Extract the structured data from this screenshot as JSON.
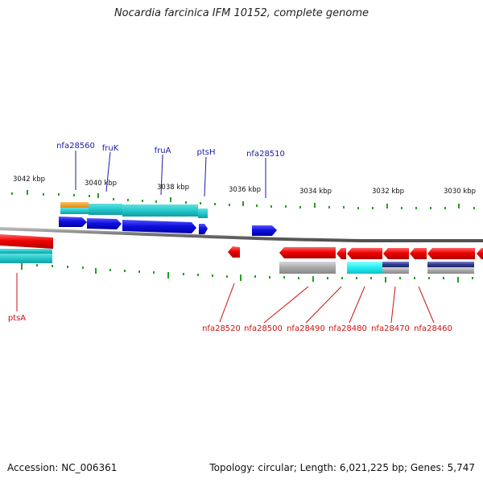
{
  "title": "Nocardia farcinica IFM 10152, complete genome",
  "footer": {
    "accession": "Accession: NC_006361",
    "summary": "Topology: circular; Length: 6,021,225 bp; Genes: 5,747"
  },
  "axis": {
    "unit": "kbp",
    "ticks": [
      "3042 kbp",
      "3040 kbp",
      "3038 kbp",
      "3036 kbp",
      "3034 kbp",
      "3032 kbp",
      "3030 kbp"
    ]
  },
  "colors": {
    "forward_gene": "#ee0000",
    "cds_blue": "#1010e0",
    "cyan": "#22c8cc",
    "orange": "#f0a020",
    "gray": "#a0a0a0",
    "navy": "#303890",
    "tick": "#22a022",
    "label_blue": "#1a1aa8",
    "label_red": "#cc1111",
    "backbone": "#808080"
  },
  "labels": {
    "top": [
      "nfa28560",
      "fruK",
      "fruA",
      "ptsH",
      "nfa28510"
    ],
    "bottom": [
      "ptsA",
      "nfa28520",
      "nfa28500",
      "nfa28490",
      "nfa28480",
      "nfa28470",
      "nfa28460"
    ]
  }
}
